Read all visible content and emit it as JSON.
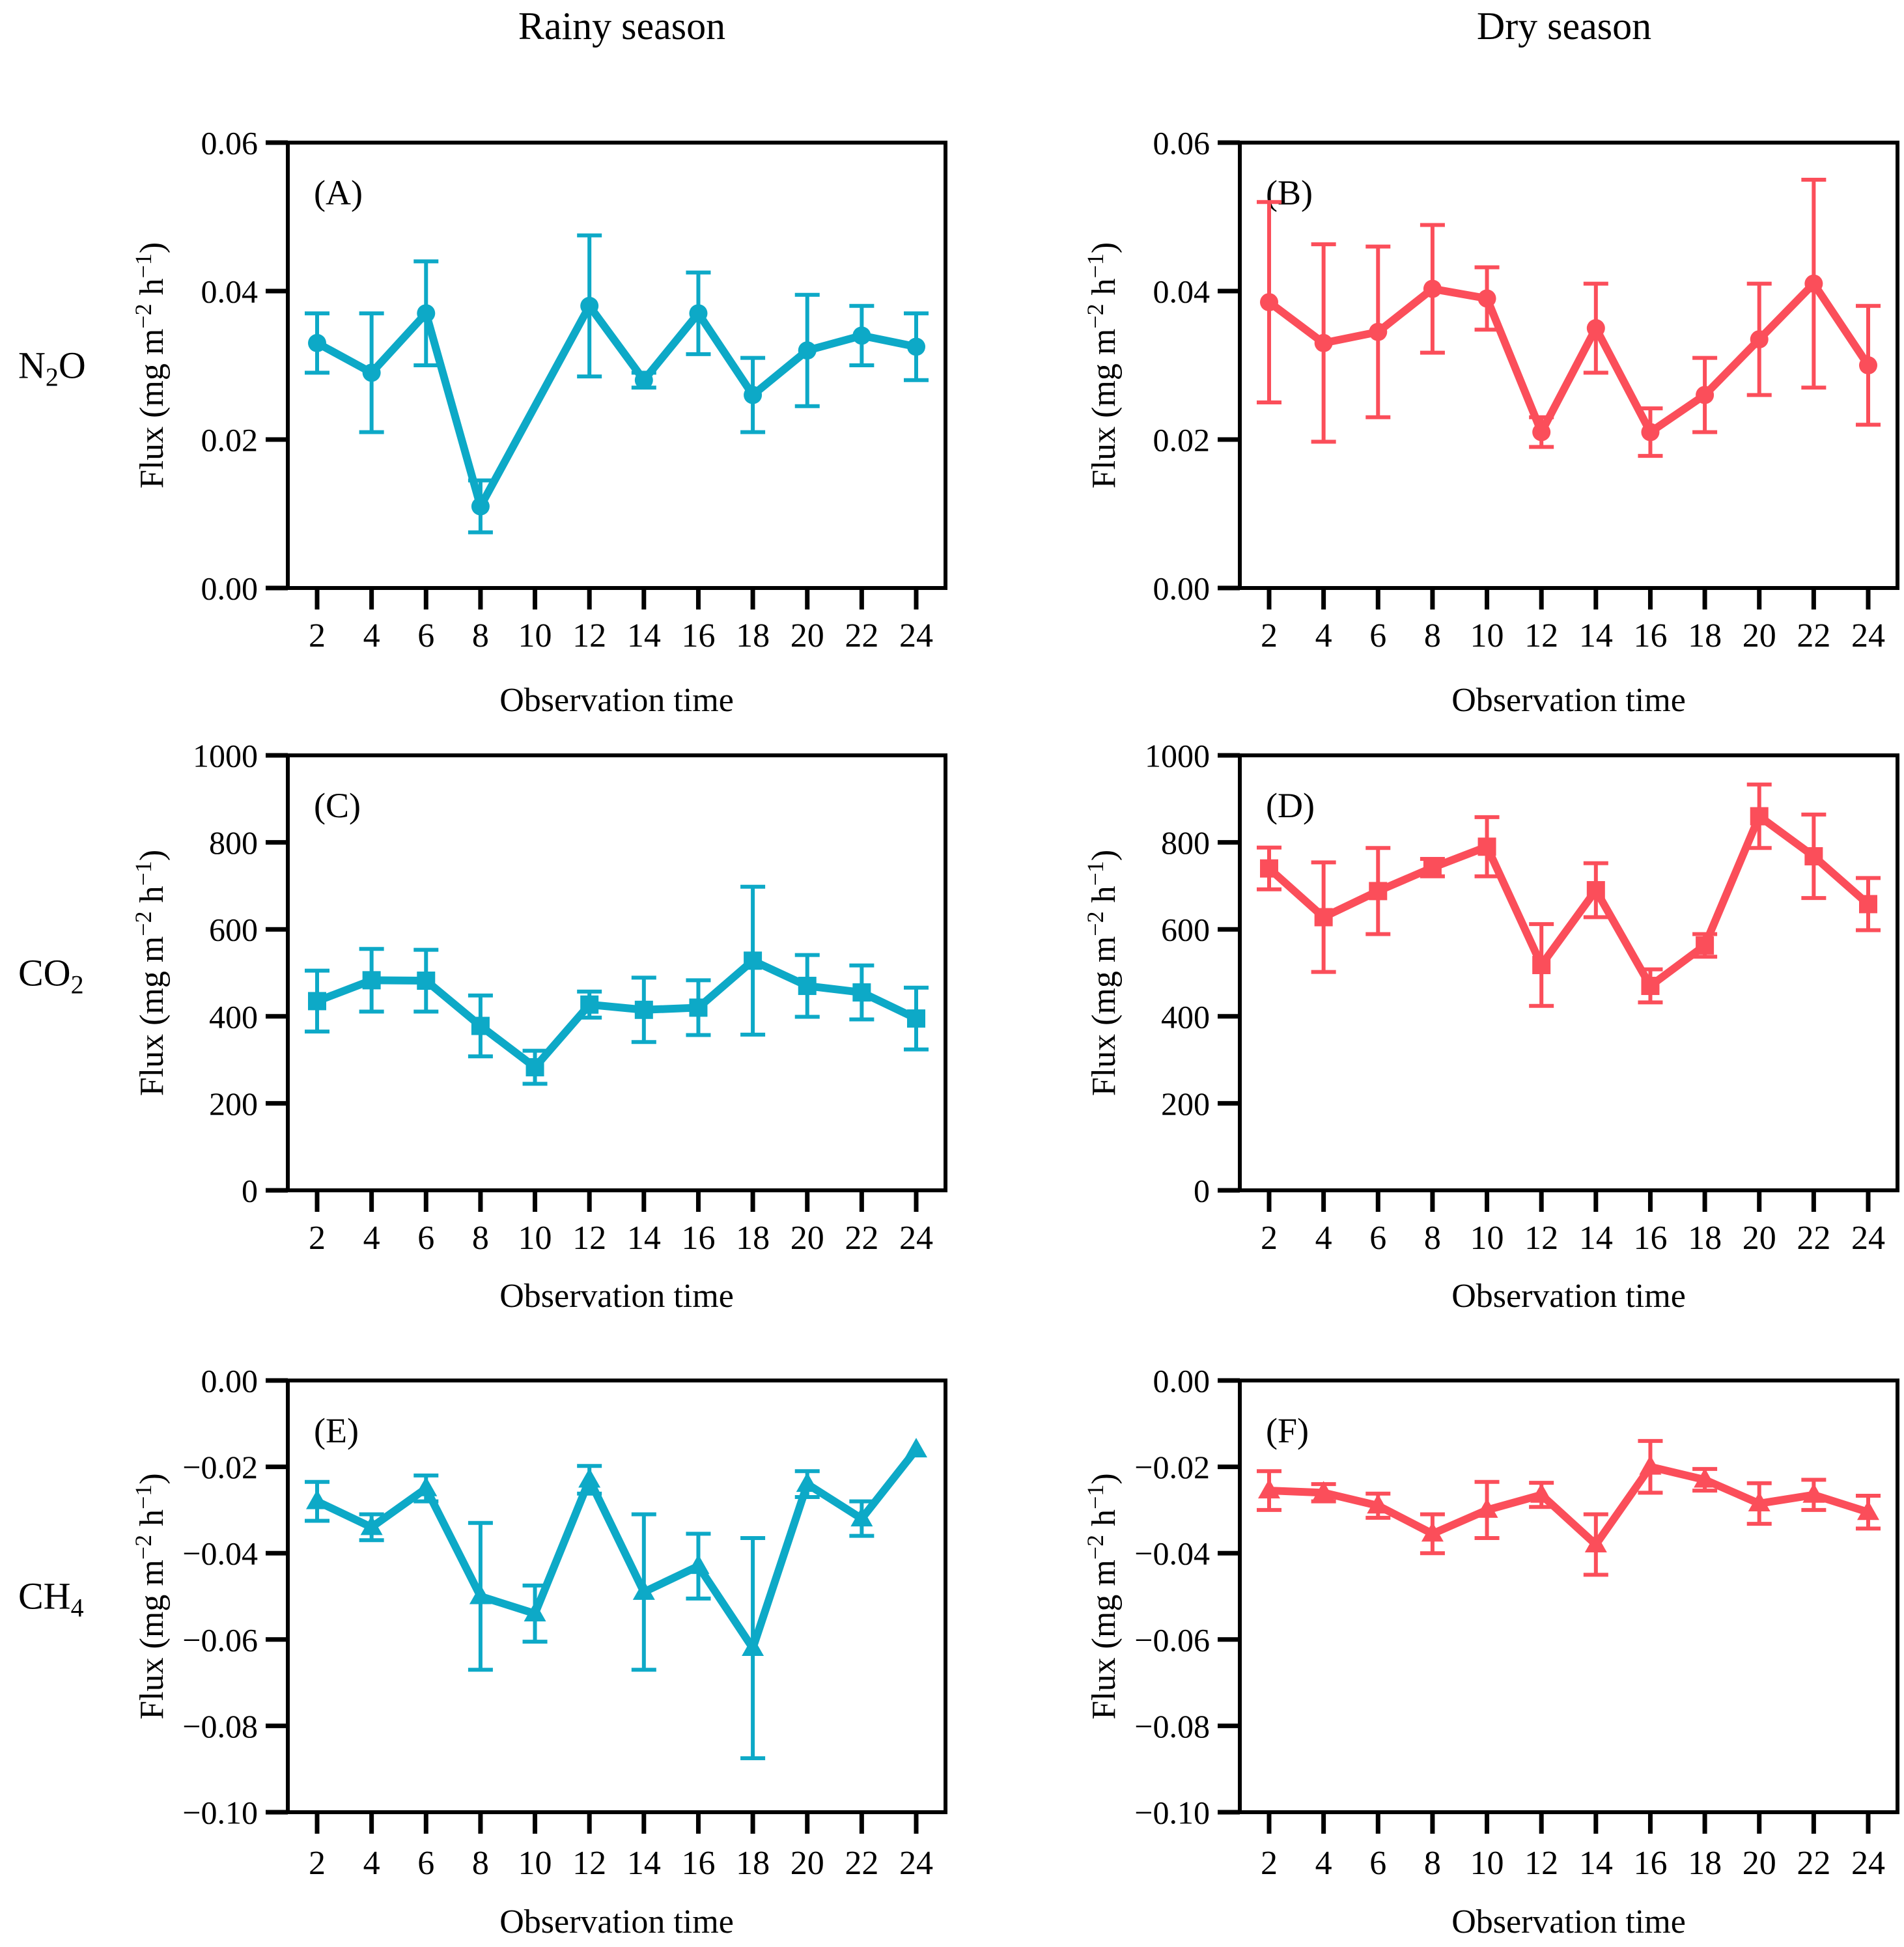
{
  "figure": {
    "columns": [
      {
        "title": "Rainy season"
      },
      {
        "title": "Dry season"
      }
    ],
    "rows": [
      {
        "gas": "N2O",
        "gas_parts": [
          [
            "N",
            ""
          ],
          [
            "2",
            "sub"
          ],
          [
            "O",
            ""
          ]
        ]
      },
      {
        "gas": "CO2",
        "gas_parts": [
          [
            "CO",
            ""
          ],
          [
            "2",
            "sub"
          ]
        ]
      },
      {
        "gas": "CH4",
        "gas_parts": [
          [
            "CH",
            ""
          ],
          [
            "4",
            "sub"
          ]
        ]
      }
    ],
    "colors": {
      "rainy": "#0da9c7",
      "dry": "#fb4e5a"
    }
  },
  "chart_data": [
    {
      "type": "line",
      "letter": "(A)",
      "season": "Rainy season",
      "gas": "N2O",
      "marker": "circle",
      "color_key": "rainy",
      "xlabel": "Observation time",
      "ylabel": "Flux (mg m−2 h−1)",
      "ylabel_parts": [
        [
          "Flux (mg m",
          ""
        ],
        [
          "−2",
          "sup"
        ],
        [
          " h",
          ""
        ],
        [
          "−1",
          "sup"
        ],
        [
          ")",
          ""
        ]
      ],
      "xlim": [
        2,
        24
      ],
      "xticks": [
        2,
        4,
        6,
        8,
        10,
        12,
        14,
        16,
        18,
        20,
        22,
        24
      ],
      "ylim": [
        0,
        0.06
      ],
      "yticks": [
        {
          "v": 0,
          "label": "0.00"
        },
        {
          "v": 0.02,
          "label": "0.02"
        },
        {
          "v": 0.04,
          "label": "0.04"
        },
        {
          "v": 0.06,
          "label": "0.06"
        }
      ],
      "points": [
        {
          "x": 2,
          "y": 0.033,
          "err": 0.004
        },
        {
          "x": 4,
          "y": 0.029,
          "err": 0.008
        },
        {
          "x": 6,
          "y": 0.037,
          "err": 0.007
        },
        {
          "x": 8,
          "y": 0.011,
          "err": 0.0035
        },
        {
          "x": 12,
          "y": 0.038,
          "err": 0.0095
        },
        {
          "x": 14,
          "y": 0.028,
          "err": 0.001
        },
        {
          "x": 16,
          "y": 0.037,
          "err": 0.0055
        },
        {
          "x": 18,
          "y": 0.026,
          "err": 0.005
        },
        {
          "x": 20,
          "y": 0.032,
          "err": 0.0075
        },
        {
          "x": 22,
          "y": 0.034,
          "err": 0.004
        },
        {
          "x": 24,
          "y": 0.0325,
          "err": 0.0045
        }
      ]
    },
    {
      "type": "line",
      "letter": "(B)",
      "season": "Dry season",
      "gas": "N2O",
      "marker": "circle",
      "color_key": "dry",
      "xlabel": "Observation time",
      "ylabel": "Flux (mg m−2 h−1)",
      "ylabel_parts": [
        [
          "Flux (mg m",
          ""
        ],
        [
          "−2",
          "sup"
        ],
        [
          " h",
          ""
        ],
        [
          "−1",
          "sup"
        ],
        [
          ")",
          ""
        ]
      ],
      "xlim": [
        2,
        24
      ],
      "xticks": [
        2,
        4,
        6,
        8,
        10,
        12,
        14,
        16,
        18,
        20,
        22,
        24
      ],
      "ylim": [
        0,
        0.06
      ],
      "yticks": [
        {
          "v": 0,
          "label": "0.00"
        },
        {
          "v": 0.02,
          "label": "0.02"
        },
        {
          "v": 0.04,
          "label": "0.04"
        },
        {
          "v": 0.06,
          "label": "0.06"
        }
      ],
      "points": [
        {
          "x": 2,
          "y": 0.0385,
          "err": 0.0135
        },
        {
          "x": 4,
          "y": 0.033,
          "err": 0.0133
        },
        {
          "x": 6,
          "y": 0.0345,
          "err": 0.0115
        },
        {
          "x": 8,
          "y": 0.0403,
          "err": 0.0086
        },
        {
          "x": 10,
          "y": 0.039,
          "err": 0.0042
        },
        {
          "x": 12,
          "y": 0.021,
          "err": 0.002
        },
        {
          "x": 14,
          "y": 0.035,
          "err": 0.006
        },
        {
          "x": 16,
          "y": 0.021,
          "err": 0.0032
        },
        {
          "x": 18,
          "y": 0.026,
          "err": 0.005
        },
        {
          "x": 20,
          "y": 0.0335,
          "err": 0.0075
        },
        {
          "x": 22,
          "y": 0.041,
          "err": 0.014
        },
        {
          "x": 24,
          "y": 0.03,
          "err": 0.008
        }
      ]
    },
    {
      "type": "line",
      "letter": "(C)",
      "season": "Rainy season",
      "gas": "CO2",
      "marker": "square",
      "color_key": "rainy",
      "xlabel": "Observation time",
      "ylabel": "Flux (mg m−2 h−1)",
      "ylabel_parts": [
        [
          "Flux (mg m",
          ""
        ],
        [
          "−2",
          "sup"
        ],
        [
          " h",
          ""
        ],
        [
          "−1",
          "sup"
        ],
        [
          ")",
          ""
        ]
      ],
      "xlim": [
        2,
        24
      ],
      "xticks": [
        2,
        4,
        6,
        8,
        10,
        12,
        14,
        16,
        18,
        20,
        22,
        24
      ],
      "ylim": [
        0,
        1000
      ],
      "yticks": [
        {
          "v": 0,
          "label": "0"
        },
        {
          "v": 200,
          "label": "200"
        },
        {
          "v": 400,
          "label": "400"
        },
        {
          "v": 600,
          "label": "600"
        },
        {
          "v": 800,
          "label": "800"
        },
        {
          "v": 1000,
          "label": "1000"
        }
      ],
      "points": [
        {
          "x": 2,
          "y": 435,
          "err": 70
        },
        {
          "x": 4,
          "y": 483,
          "err": 72
        },
        {
          "x": 6,
          "y": 482,
          "err": 71
        },
        {
          "x": 8,
          "y": 378,
          "err": 70
        },
        {
          "x": 10,
          "y": 283,
          "err": 38
        },
        {
          "x": 12,
          "y": 427,
          "err": 30
        },
        {
          "x": 14,
          "y": 415,
          "err": 74
        },
        {
          "x": 16,
          "y": 420,
          "err": 63
        },
        {
          "x": 18,
          "y": 528,
          "err": 170
        },
        {
          "x": 20,
          "y": 470,
          "err": 71
        },
        {
          "x": 22,
          "y": 455,
          "err": 62
        },
        {
          "x": 24,
          "y": 395,
          "err": 71
        }
      ]
    },
    {
      "type": "line",
      "letter": "(D)",
      "season": "Dry season",
      "gas": "CO2",
      "marker": "square",
      "color_key": "dry",
      "xlabel": "Observation time",
      "ylabel": "Flux (mg m−2 h−1)",
      "ylabel_parts": [
        [
          "Flux (mg m",
          ""
        ],
        [
          "−2",
          "sup"
        ],
        [
          " h",
          ""
        ],
        [
          "−1",
          "sup"
        ],
        [
          ")",
          ""
        ]
      ],
      "xlim": [
        2,
        24
      ],
      "xticks": [
        2,
        4,
        6,
        8,
        10,
        12,
        14,
        16,
        18,
        20,
        22,
        24
      ],
      "ylim": [
        0,
        1000
      ],
      "yticks": [
        {
          "v": 0,
          "label": "0"
        },
        {
          "v": 200,
          "label": "200"
        },
        {
          "v": 400,
          "label": "400"
        },
        {
          "v": 600,
          "label": "600"
        },
        {
          "v": 800,
          "label": "800"
        },
        {
          "v": 1000,
          "label": "1000"
        }
      ],
      "points": [
        {
          "x": 2,
          "y": 740,
          "err": 48
        },
        {
          "x": 4,
          "y": 628,
          "err": 126
        },
        {
          "x": 6,
          "y": 688,
          "err": 99
        },
        {
          "x": 8,
          "y": 742,
          "err": 20
        },
        {
          "x": 10,
          "y": 790,
          "err": 68
        },
        {
          "x": 12,
          "y": 518,
          "err": 94
        },
        {
          "x": 14,
          "y": 690,
          "err": 62
        },
        {
          "x": 16,
          "y": 470,
          "err": 38
        },
        {
          "x": 18,
          "y": 563,
          "err": 26
        },
        {
          "x": 20,
          "y": 860,
          "err": 73
        },
        {
          "x": 22,
          "y": 768,
          "err": 96
        },
        {
          "x": 24,
          "y": 658,
          "err": 60
        }
      ]
    },
    {
      "type": "line",
      "letter": "(E)",
      "season": "Rainy season",
      "gas": "CH4",
      "marker": "triangle",
      "color_key": "rainy",
      "xlabel": "Observation time",
      "ylabel": "Flux (mg m−2 h−1)",
      "ylabel_parts": [
        [
          "Flux (mg m",
          ""
        ],
        [
          "−2",
          "sup"
        ],
        [
          " h",
          ""
        ],
        [
          "−1",
          "sup"
        ],
        [
          ")",
          ""
        ]
      ],
      "xlim": [
        2,
        24
      ],
      "xticks": [
        2,
        4,
        6,
        8,
        10,
        12,
        14,
        16,
        18,
        20,
        22,
        24
      ],
      "ylim": [
        -0.1,
        0
      ],
      "yticks": [
        {
          "v": 0,
          "label": "0.00"
        },
        {
          "v": -0.02,
          "label": "−0.02"
        },
        {
          "v": -0.04,
          "label": "−0.04"
        },
        {
          "v": -0.06,
          "label": "−0.06"
        },
        {
          "v": -0.08,
          "label": "−0.08"
        },
        {
          "v": -0.1,
          "label": "−0.10"
        }
      ],
      "points": [
        {
          "x": 2,
          "y": -0.028,
          "err": 0.0045
        },
        {
          "x": 4,
          "y": -0.034,
          "err": 0.003
        },
        {
          "x": 6,
          "y": -0.025,
          "err": 0.003
        },
        {
          "x": 8,
          "y": -0.05,
          "err": 0.017
        },
        {
          "x": 10,
          "y": -0.054,
          "err": 0.0065
        },
        {
          "x": 12,
          "y": -0.023,
          "err": 0.0032
        },
        {
          "x": 14,
          "y": -0.049,
          "err": 0.018
        },
        {
          "x": 16,
          "y": -0.043,
          "err": 0.0075
        },
        {
          "x": 18,
          "y": -0.062,
          "err": 0.0255
        },
        {
          "x": 20,
          "y": -0.024,
          "err": 0.003
        },
        {
          "x": 22,
          "y": -0.032,
          "err": 0.004
        },
        {
          "x": 24,
          "y": -0.016,
          "err": 0
        }
      ]
    },
    {
      "type": "line",
      "letter": "(F)",
      "season": "Dry season",
      "gas": "CH4",
      "marker": "triangle",
      "color_key": "dry",
      "xlabel": "Observation time",
      "ylabel": "Flux (mg m−2 h−1)",
      "ylabel_parts": [
        [
          "Flux (mg m",
          ""
        ],
        [
          "−2",
          "sup"
        ],
        [
          " h",
          ""
        ],
        [
          "−1",
          "sup"
        ],
        [
          ")",
          ""
        ]
      ],
      "xlim": [
        2,
        24
      ],
      "xticks": [
        2,
        4,
        6,
        8,
        10,
        12,
        14,
        16,
        18,
        20,
        22,
        24
      ],
      "ylim": [
        -0.1,
        0
      ],
      "yticks": [
        {
          "v": 0,
          "label": "0.00"
        },
        {
          "v": -0.02,
          "label": "−0.02"
        },
        {
          "v": -0.04,
          "label": "−0.04"
        },
        {
          "v": -0.06,
          "label": "−0.06"
        },
        {
          "v": -0.08,
          "label": "−0.08"
        },
        {
          "v": -0.1,
          "label": "−0.10"
        }
      ],
      "points": [
        {
          "x": 2,
          "y": -0.0255,
          "err": 0.0045
        },
        {
          "x": 4,
          "y": -0.026,
          "err": 0.002
        },
        {
          "x": 6,
          "y": -0.029,
          "err": 0.0028
        },
        {
          "x": 8,
          "y": -0.0355,
          "err": 0.0045
        },
        {
          "x": 10,
          "y": -0.03,
          "err": 0.0065
        },
        {
          "x": 12,
          "y": -0.0265,
          "err": 0.0028
        },
        {
          "x": 14,
          "y": -0.038,
          "err": 0.007
        },
        {
          "x": 16,
          "y": -0.02,
          "err": 0.006
        },
        {
          "x": 18,
          "y": -0.023,
          "err": 0.0025
        },
        {
          "x": 20,
          "y": -0.0285,
          "err": 0.0047
        },
        {
          "x": 22,
          "y": -0.0265,
          "err": 0.0035
        },
        {
          "x": 24,
          "y": -0.0305,
          "err": 0.0038
        }
      ]
    }
  ]
}
